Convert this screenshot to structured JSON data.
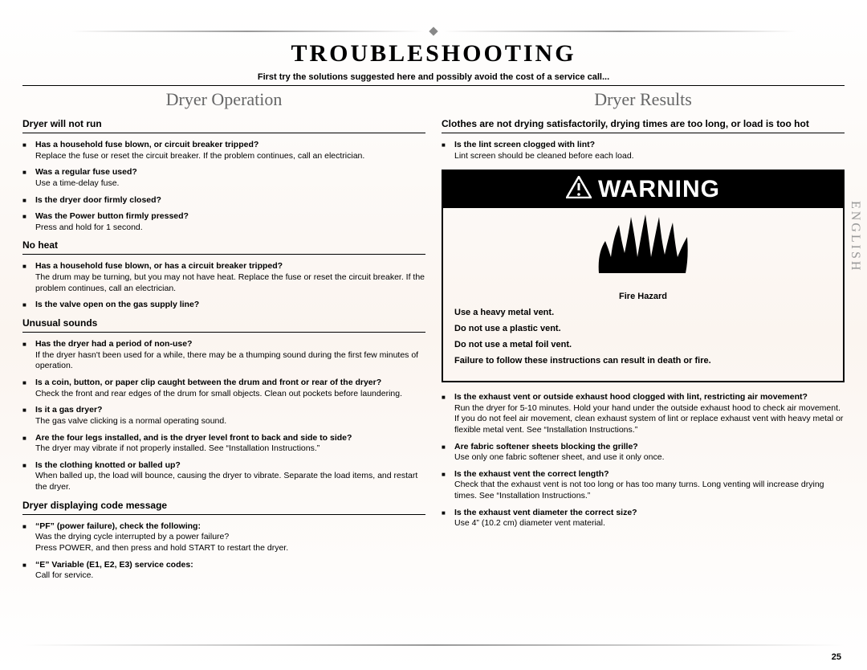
{
  "page": {
    "title": "TROUBLESHOOTING",
    "subtitle": "First try the solutions suggested here and possibly avoid the cost of a service call...",
    "side_label": "ENGLISH",
    "page_number": "25",
    "colors": {
      "title_color": "#000000",
      "subtitle_color": "#666666",
      "body_color": "#000000",
      "warning_bg": "#000000",
      "warning_fg": "#ffffff",
      "ornament_color": "#888888"
    },
    "typography": {
      "title_fontsize": 30,
      "subtitle_fontsize": 11,
      "coltitle_fontsize": 22,
      "section_fontsize": 12,
      "body_fontsize": 10.5,
      "warning_header_fontsize": 30
    }
  },
  "left": {
    "title": "Dryer Operation",
    "sections": [
      {
        "head": "Dryer will not run",
        "items": [
          {
            "q": "Has a household fuse blown, or circuit breaker tripped?",
            "a": "Replace the fuse or reset the circuit breaker. If the problem continues, call an electrician."
          },
          {
            "q": "Was a regular fuse used?",
            "a": "Use a time-delay fuse."
          },
          {
            "q": "Is the dryer door firmly closed?",
            "a": ""
          },
          {
            "q": "Was the Power button firmly pressed?",
            "a": "Press and hold for 1 second."
          }
        ]
      },
      {
        "head": "No heat",
        "items": [
          {
            "q": "Has a household fuse blown, or has a circuit breaker tripped?",
            "a": "The drum may be turning, but you may not have heat. Replace the fuse or reset the circuit breaker. If the problem continues, call an electrician."
          },
          {
            "q": "Is the valve open on the gas supply line?",
            "a": ""
          }
        ]
      },
      {
        "head": "Unusual sounds",
        "items": [
          {
            "q": "Has the dryer had a period of non-use?",
            "a": "If the dryer hasn't been used for a while, there may be a thumping sound during the first few minutes of operation."
          },
          {
            "q": "Is a coin, button, or paper clip caught between the drum and front or rear of the dryer?",
            "a": "Check the front and rear edges of the drum for small objects. Clean out pockets before laundering."
          },
          {
            "q": "Is it a gas dryer?",
            "a": "The gas valve clicking is a normal operating sound."
          },
          {
            "q": "Are the four legs installed, and is the dryer level front to back and side to side?",
            "a": "The dryer may vibrate if not properly installed. See “Installation Instructions.”"
          },
          {
            "q": "Is the clothing knotted or balled up? ",
            "a": "When balled up, the load will bounce, causing the dryer to vibrate. Separate the load items, and restart the dryer."
          }
        ]
      },
      {
        "head": "Dryer displaying code message",
        "items": [
          {
            "q": "“PF” (power failure), check the following:",
            "a": "Was the drying cycle interrupted by a power failure?\nPress POWER, and then press and hold START to restart the dryer."
          },
          {
            "q": "“E” Variable (E1, E2, E3) service codes:",
            "a": "Call for service."
          }
        ]
      }
    ]
  },
  "right": {
    "title": "Dryer Results",
    "section_head": "Clothes are not drying satisfactorily, drying times are too long, or load is too hot",
    "pre_items": [
      {
        "q": "Is the lint screen clogged with lint?",
        "a": "Lint screen should be cleaned before each load."
      }
    ],
    "warning": {
      "label": "WARNING",
      "lines": {
        "fh": "Fire Hazard",
        "l1": "Use a heavy metal vent.",
        "l2": "Do not use a plastic vent.",
        "l3": "Do not use a metal foil vent.",
        "l4": "Failure to follow these instructions can result in death or fire."
      }
    },
    "post_items": [
      {
        "q": "Is the exhaust vent or outside exhaust hood clogged with lint, restricting air movement?",
        "a": "Run the dryer for 5-10 minutes. Hold your hand under the outside exhaust hood to check air movement. If you do not feel air movement, clean exhaust system of lint or replace exhaust vent with heavy metal or flexible metal vent. See “Installation Instructions.”"
      },
      {
        "q": "Are fabric softener sheets blocking the grille?",
        "a": "Use only one fabric softener sheet, and use it only once."
      },
      {
        "q": "Is the exhaust vent the correct length?",
        "a": "Check that the exhaust vent is not too long or has too many turns. Long venting will increase drying times. See “Installation Instructions.”"
      },
      {
        "q": "Is the exhaust vent diameter the correct size?",
        "a": "Use 4” (10.2 cm) diameter vent material."
      }
    ]
  }
}
